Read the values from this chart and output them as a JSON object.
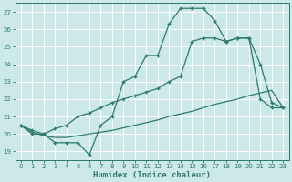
{
  "xlabel": "Humidex (Indice chaleur)",
  "bg_color": "#cce8e8",
  "grid_color": "#b8d8d8",
  "line_color": "#2d7a6a",
  "xlim": [
    -0.5,
    23.5
  ],
  "ylim": [
    18.5,
    27.5
  ],
  "yticks": [
    19,
    20,
    21,
    22,
    23,
    24,
    25,
    26,
    27
  ],
  "xticks": [
    0,
    1,
    2,
    3,
    4,
    5,
    6,
    7,
    8,
    9,
    10,
    11,
    12,
    13,
    14,
    15,
    16,
    17,
    18,
    19,
    20,
    21,
    22,
    23
  ],
  "curve1": [
    20.5,
    20.0,
    20.0,
    19.5,
    19.5,
    19.5,
    18.8,
    20.5,
    21.0,
    23.0,
    23.3,
    24.5,
    24.5,
    26.3,
    27.2,
    27.2,
    27.2,
    26.5,
    25.3,
    25.5,
    25.5,
    24.0,
    21.8,
    21.5
  ],
  "curve2": [
    20.5,
    20.2,
    20.0,
    20.3,
    20.5,
    21.0,
    21.2,
    21.5,
    21.8,
    22.0,
    22.2,
    22.4,
    22.6,
    23.0,
    23.3,
    25.3,
    25.5,
    25.5,
    25.3,
    25.5,
    25.5,
    22.0,
    21.5,
    21.5
  ],
  "baseline": [
    20.5,
    20.1,
    19.9,
    19.8,
    19.8,
    19.9,
    20.0,
    20.1,
    20.2,
    20.35,
    20.5,
    20.65,
    20.8,
    21.0,
    21.15,
    21.3,
    21.5,
    21.7,
    21.85,
    22.0,
    22.2,
    22.35,
    22.5,
    21.5
  ]
}
